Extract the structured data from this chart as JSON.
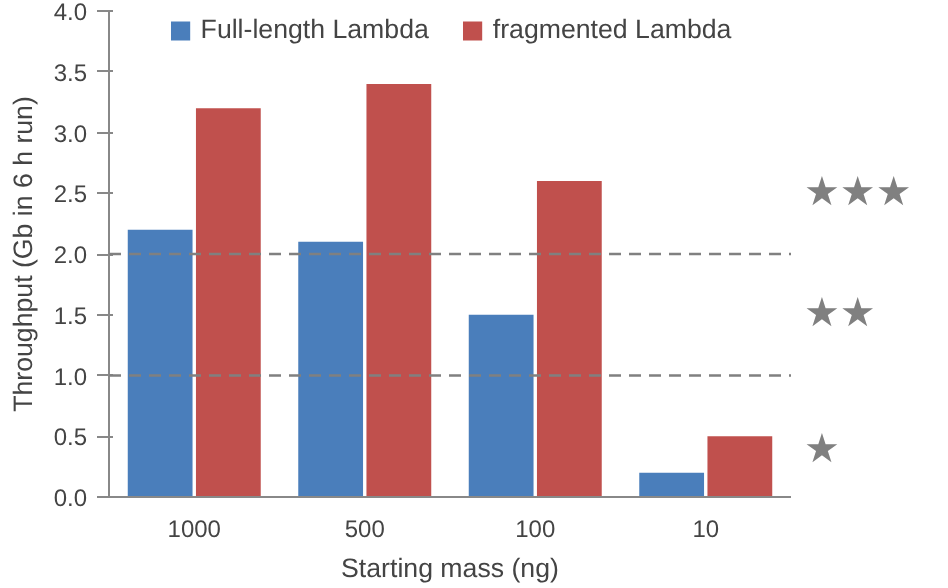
{
  "chart_data": {
    "type": "bar",
    "xlabel": "Starting mass (ng)",
    "ylabel": "Throughput (Gb in 6 h run)",
    "categories": [
      "1000",
      "500",
      "100",
      "10"
    ],
    "series": [
      {
        "name": "Full-length Lambda",
        "color": "#4a7ebb",
        "values": [
          2.2,
          2.1,
          1.5,
          0.2
        ]
      },
      {
        "name": "fragmented Lambda",
        "color": "#c0504d",
        "values": [
          3.2,
          3.4,
          2.6,
          0.5
        ]
      }
    ],
    "ylim": [
      0,
      4
    ],
    "yticks": [
      {
        "value": 0,
        "label": "0.0"
      },
      {
        "value": 0.5,
        "label": "0.5"
      },
      {
        "value": 1,
        "label": "1.0"
      },
      {
        "value": 1.5,
        "label": "1.5"
      },
      {
        "value": 2,
        "label": "2.0"
      },
      {
        "value": 2.5,
        "label": "2.5"
      },
      {
        "value": 3,
        "label": "3.0"
      },
      {
        "value": 3.5,
        "label": "3.5"
      },
      {
        "value": 4,
        "label": "4.0"
      }
    ],
    "ref_lines": [
      {
        "axis": "y",
        "value": 2.0,
        "color": "#808080",
        "line_style": "dashed"
      },
      {
        "axis": "y",
        "value": 1.0,
        "color": "#808080",
        "line_style": "dashed"
      }
    ],
    "annotations": [
      "★★★",
      "★★",
      "★"
    ],
    "legend": "top",
    "grid": false
  }
}
